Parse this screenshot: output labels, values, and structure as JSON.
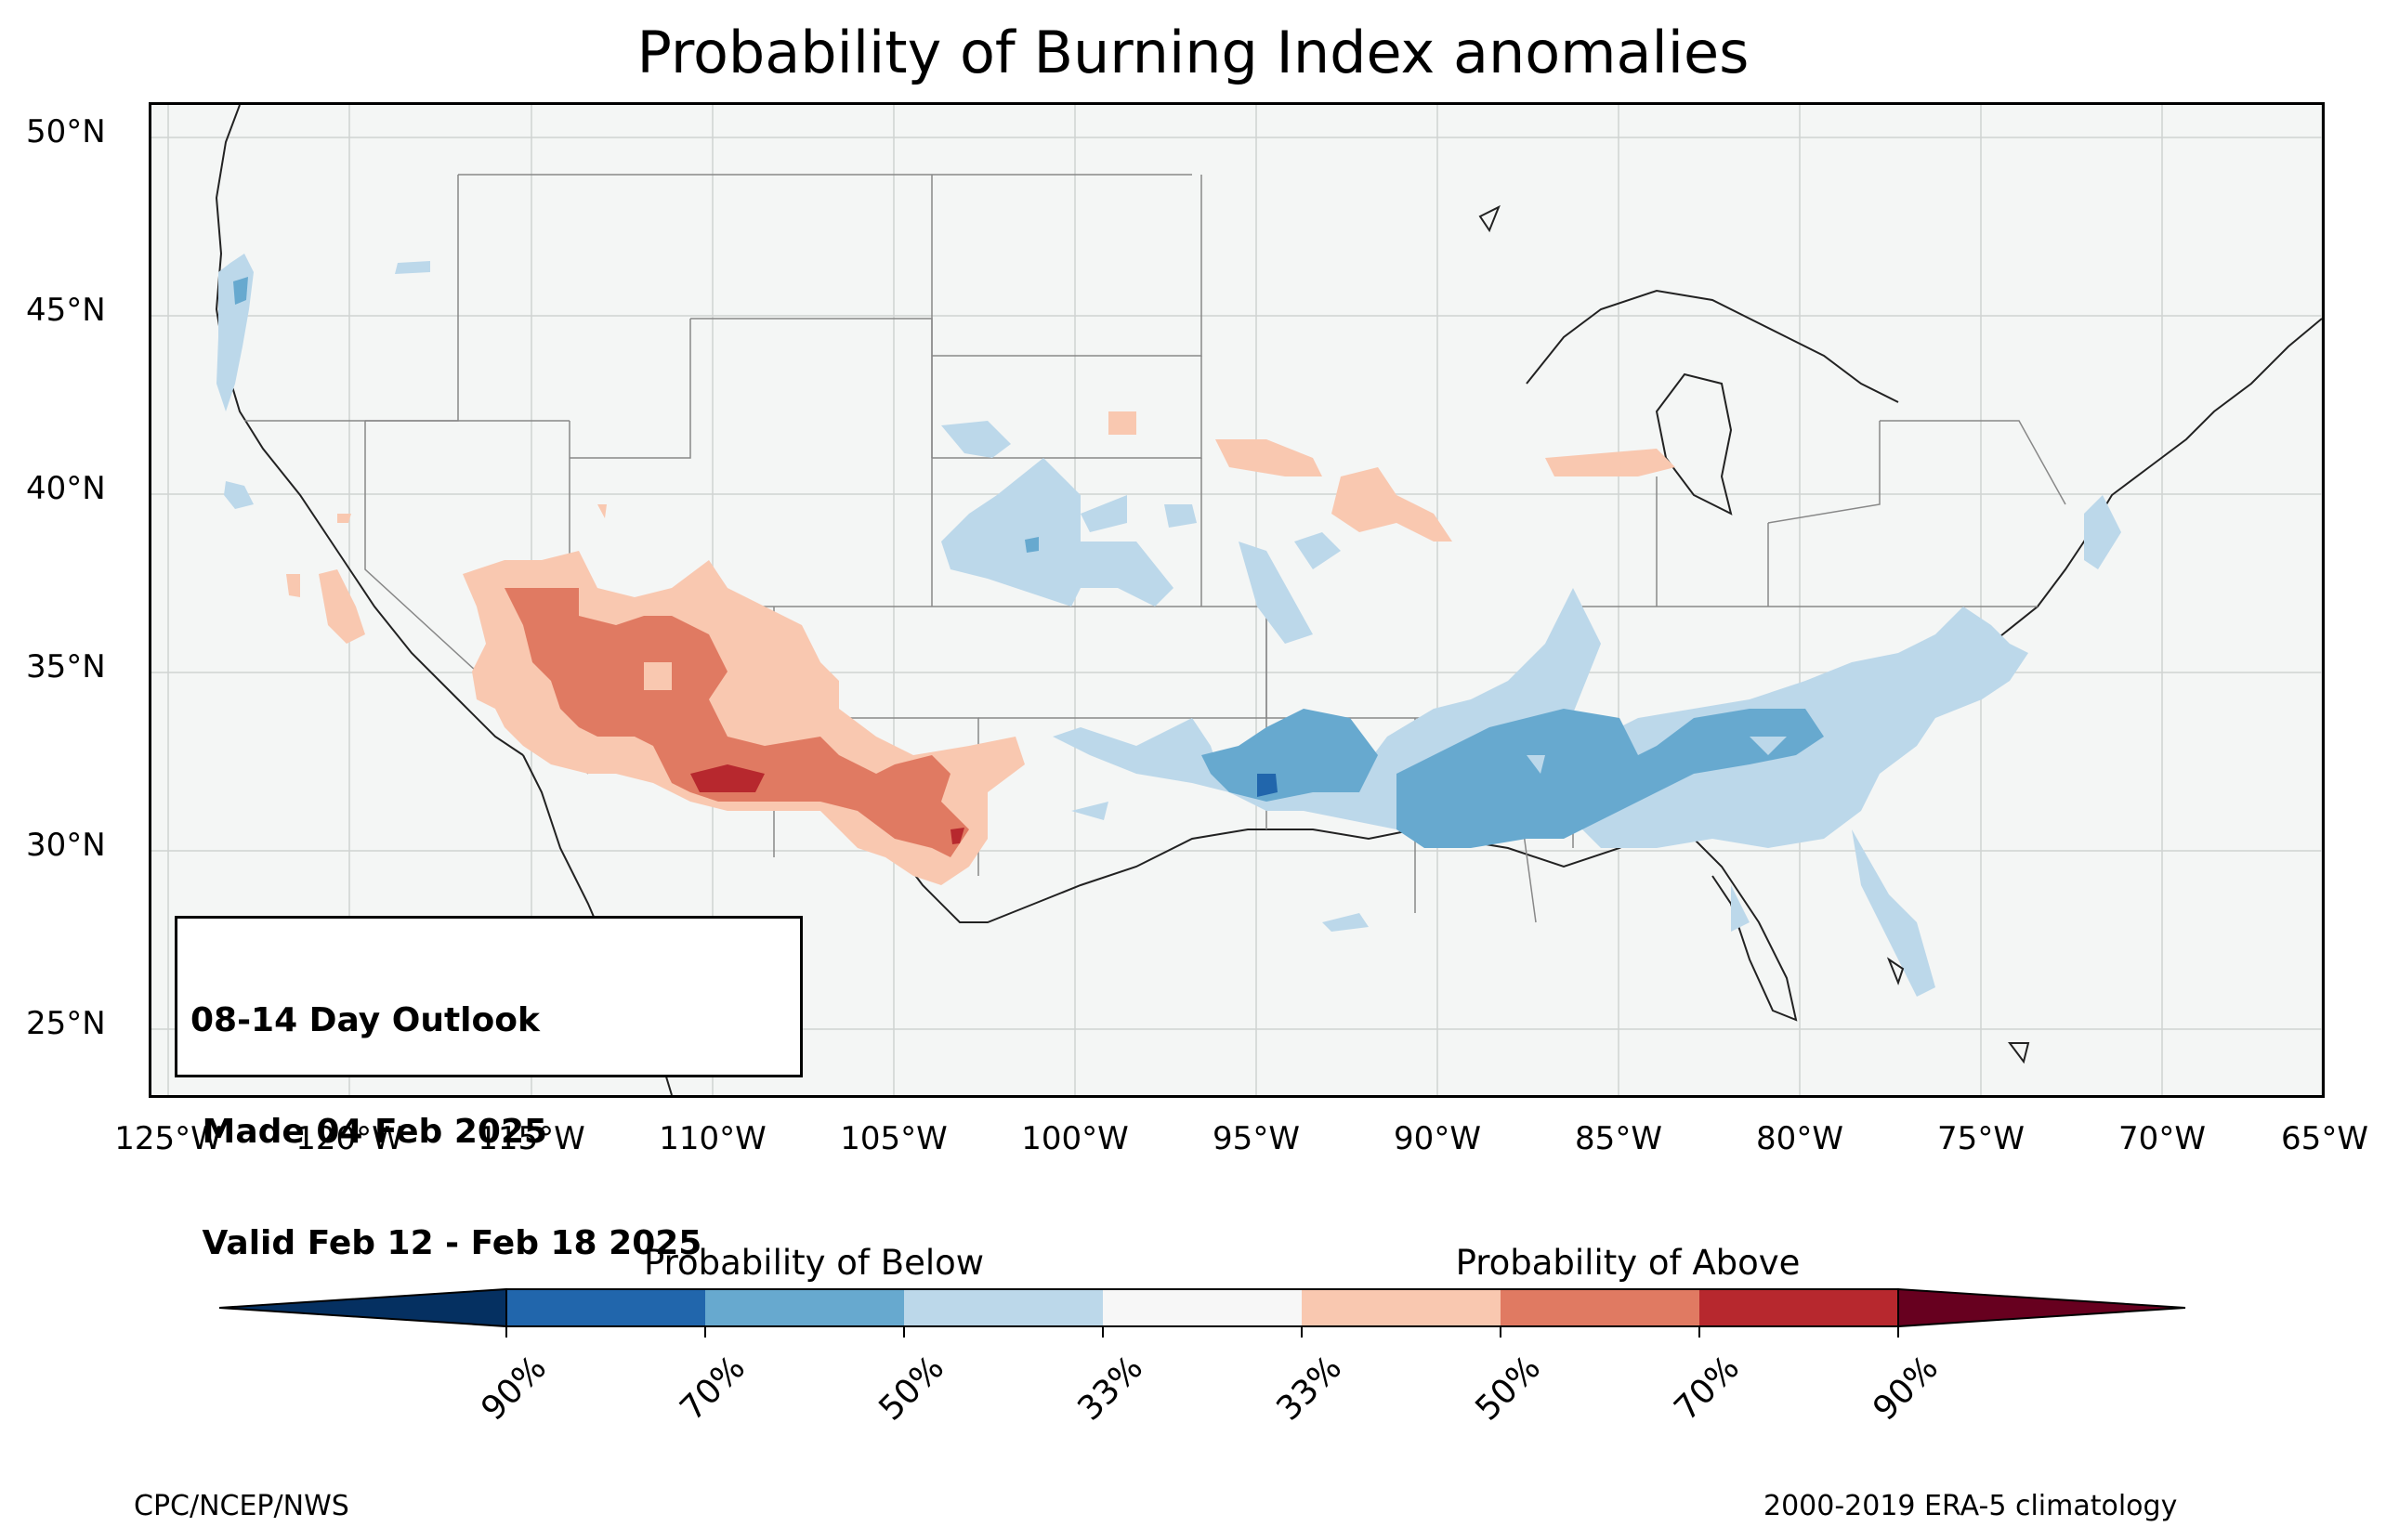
{
  "title": "Probability of Burning Index anomalies",
  "info_box": {
    "line1": "08-14 Day Outlook",
    "line2": " Made 04 Feb 2025",
    "line3": " Valid Feb 12 - Feb 18 2025"
  },
  "lat_labels": [
    "50°N",
    "45°N",
    "40°N",
    "35°N",
    "30°N",
    "25°N"
  ],
  "lon_labels": [
    "125°W",
    "120°W",
    "115°W",
    "110°W",
    "105°W",
    "100°W",
    "95°W",
    "90°W",
    "85°W",
    "80°W",
    "75°W",
    "70°W",
    "65°W"
  ],
  "colorbar": {
    "below_label": "Probability of Below",
    "above_label": "Probability of Above",
    "tick_labels": [
      "90%",
      "70%",
      "50%",
      "33%",
      "33%",
      "50%",
      "70%",
      "90%"
    ],
    "colors": [
      "#053061",
      "#2166ac",
      "#67a9cf",
      "#bcd8ea",
      "#f7f7f7",
      "#f9c8b0",
      "#e07a62",
      "#b7282e",
      "#67001f"
    ]
  },
  "credits": {
    "left": "CPC/NCEP/NWS",
    "right": "2000-2019 ERA-5 climatology"
  }
}
